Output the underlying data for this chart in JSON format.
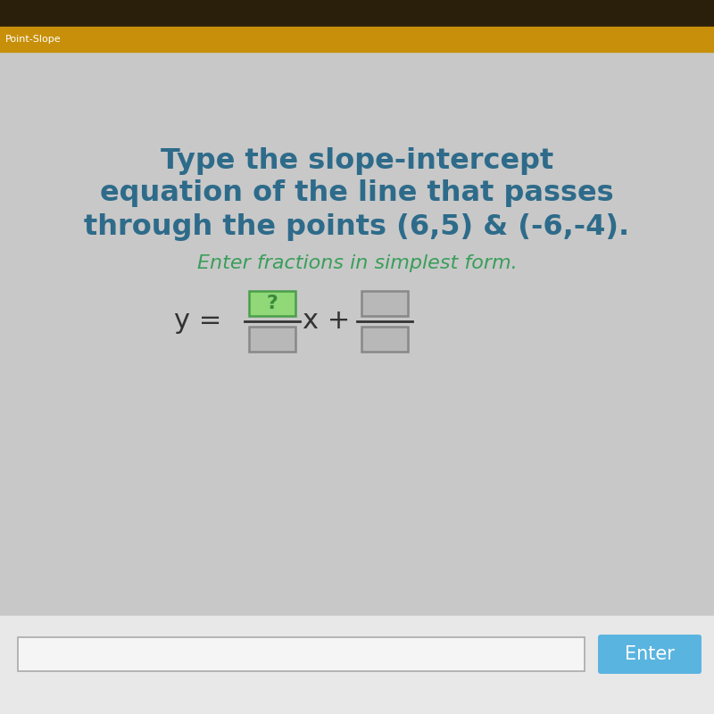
{
  "bg_color": "#c8c8c8",
  "top_bar_color": "#2a1f0a",
  "gold_bar_color": "#c8900a",
  "gold_bar_label": "Point-Slope",
  "gold_bar_label_color": "#ffffff",
  "main_text_color": "#2e6b8a",
  "main_text_line1": "Type the slope-intercept",
  "main_text_line2": "equation of the line that passes",
  "main_text_line3": "through the points (6,5) & (-6,-4).",
  "sub_text": "Enter fractions in simplest form.",
  "sub_text_color": "#3a9e5a",
  "equation_color": "#333333",
  "input_bar_color": "#f5f5f5",
  "input_bar_border": "#aaaaaa",
  "enter_button_color": "#5ab4e0",
  "enter_button_text": "Enter",
  "enter_button_text_color": "#ffffff",
  "fraction_box_empty_color": "#b8b8b8",
  "fraction_box_empty_border": "#888888",
  "fraction_numerator_highlight": "#90d878",
  "fraction_numerator_border": "#4a9e4a",
  "question_mark_color": "#3a8a3a",
  "bottom_bg_color": "#e8e8e8"
}
